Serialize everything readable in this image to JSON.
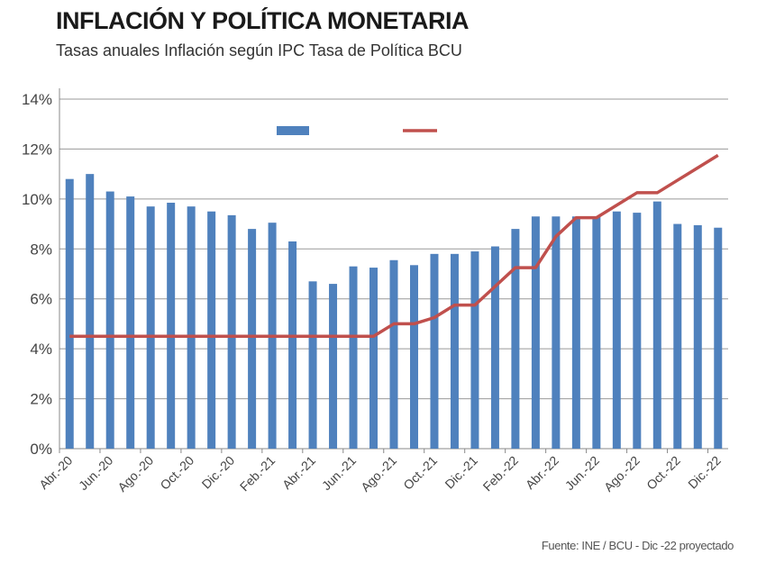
{
  "chart_data": {
    "type": "bar",
    "title": "INFLACIÓN Y POLÍTICA MONETARIA",
    "subtitle": "Tasas anuales Inflación según IPC Tasa de Política BCU",
    "source": "Fuente: INE / BCU - Dic -22 proyectado",
    "categories": [
      "Abr.-20",
      "May.-20",
      "Jun.-20",
      "Jul.-20",
      "Ago.-20",
      "Sep.-20",
      "Oct.-20",
      "Nov.-20",
      "Dic.-20",
      "Ene.-21",
      "Feb.-21",
      "Mar.-21",
      "Abr.-21",
      "May.-21",
      "Jun.-21",
      "Jul.-21",
      "Ago.-21",
      "Sep.-21",
      "Oct.-21",
      "Nov.-21",
      "Dic.-21",
      "Ene.-22",
      "Feb.-22",
      "Mar.-22",
      "Abr.-22",
      "May.-22",
      "Jun.-22",
      "Jul.-22",
      "Ago.-22",
      "Sep.-22",
      "Oct.-22",
      "Nov.-22",
      "Dic.-22"
    ],
    "tick_labels": [
      "Abr.-20",
      "Jun.-20",
      "Ago.-20",
      "Oct.-20",
      "Dic.-20",
      "Feb.-21",
      "Abr.-21",
      "Jun.-21",
      "Ago.-21",
      "Oct.-21",
      "Dic.-21",
      "Feb.-22",
      "Abr.-22",
      "Jun.-22",
      "Ago.-22",
      "Oct.-22",
      "Dic.-22"
    ],
    "series": [
      {
        "type": "bar",
        "color": "#4f81bd",
        "values": [
          10.8,
          11.0,
          10.3,
          10.1,
          9.7,
          9.85,
          9.7,
          9.5,
          9.35,
          8.8,
          9.05,
          8.3,
          6.7,
          6.6,
          7.3,
          7.25,
          7.55,
          7.35,
          7.8,
          7.8,
          7.9,
          8.1,
          8.8,
          9.3,
          9.3,
          9.3,
          9.3,
          9.5,
          9.45,
          9.9,
          9.0,
          8.95,
          8.85
        ]
      },
      {
        "type": "line",
        "color": "#c0504d",
        "values": [
          4.5,
          4.5,
          4.5,
          4.5,
          4.5,
          4.5,
          4.5,
          4.5,
          4.5,
          4.5,
          4.5,
          4.5,
          4.5,
          4.5,
          4.5,
          4.5,
          5.0,
          5.0,
          5.25,
          5.75,
          5.75,
          6.5,
          7.25,
          7.25,
          8.5,
          9.25,
          9.25,
          9.75,
          10.25,
          10.25,
          10.75,
          11.25,
          11.75
        ]
      }
    ],
    "y_ticks": [
      "0%",
      "2%",
      "4%",
      "6%",
      "8%",
      "10%",
      "12%",
      "14%"
    ],
    "ylim": [
      0,
      14
    ],
    "grid": true,
    "legend": "top-center"
  }
}
